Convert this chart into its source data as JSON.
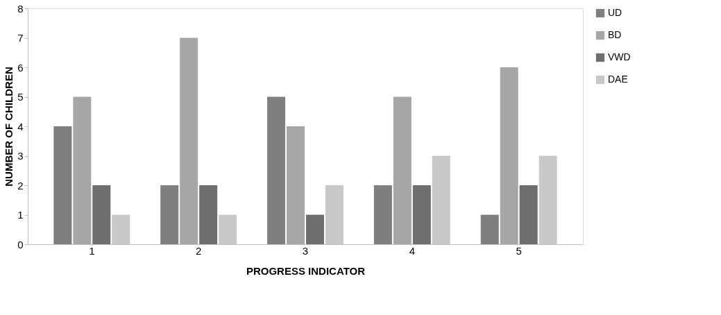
{
  "chart_data": {
    "type": "bar",
    "xlabel": "PROGRESS INDICATOR",
    "ylabel": "NUMBER OF CHILDREN",
    "categories": [
      "1",
      "2",
      "3",
      "4",
      "5"
    ],
    "series": [
      {
        "name": "UD",
        "color": "#7f7f7f",
        "values": [
          4,
          2,
          5,
          2,
          1
        ]
      },
      {
        "name": "BD",
        "color": "#a6a6a6",
        "values": [
          5,
          7,
          4,
          5,
          6
        ]
      },
      {
        "name": "VWD",
        "color": "#6e6e6e",
        "values": [
          2,
          2,
          1,
          2,
          2
        ]
      },
      {
        "name": "DAE",
        "color": "#c8c8c8",
        "values": [
          1,
          1,
          2,
          3,
          3
        ]
      }
    ],
    "ylim": [
      0,
      8
    ],
    "yticks": [
      0,
      1,
      2,
      3,
      4,
      5,
      6,
      7,
      8
    ],
    "grid": false,
    "legend": "right"
  }
}
